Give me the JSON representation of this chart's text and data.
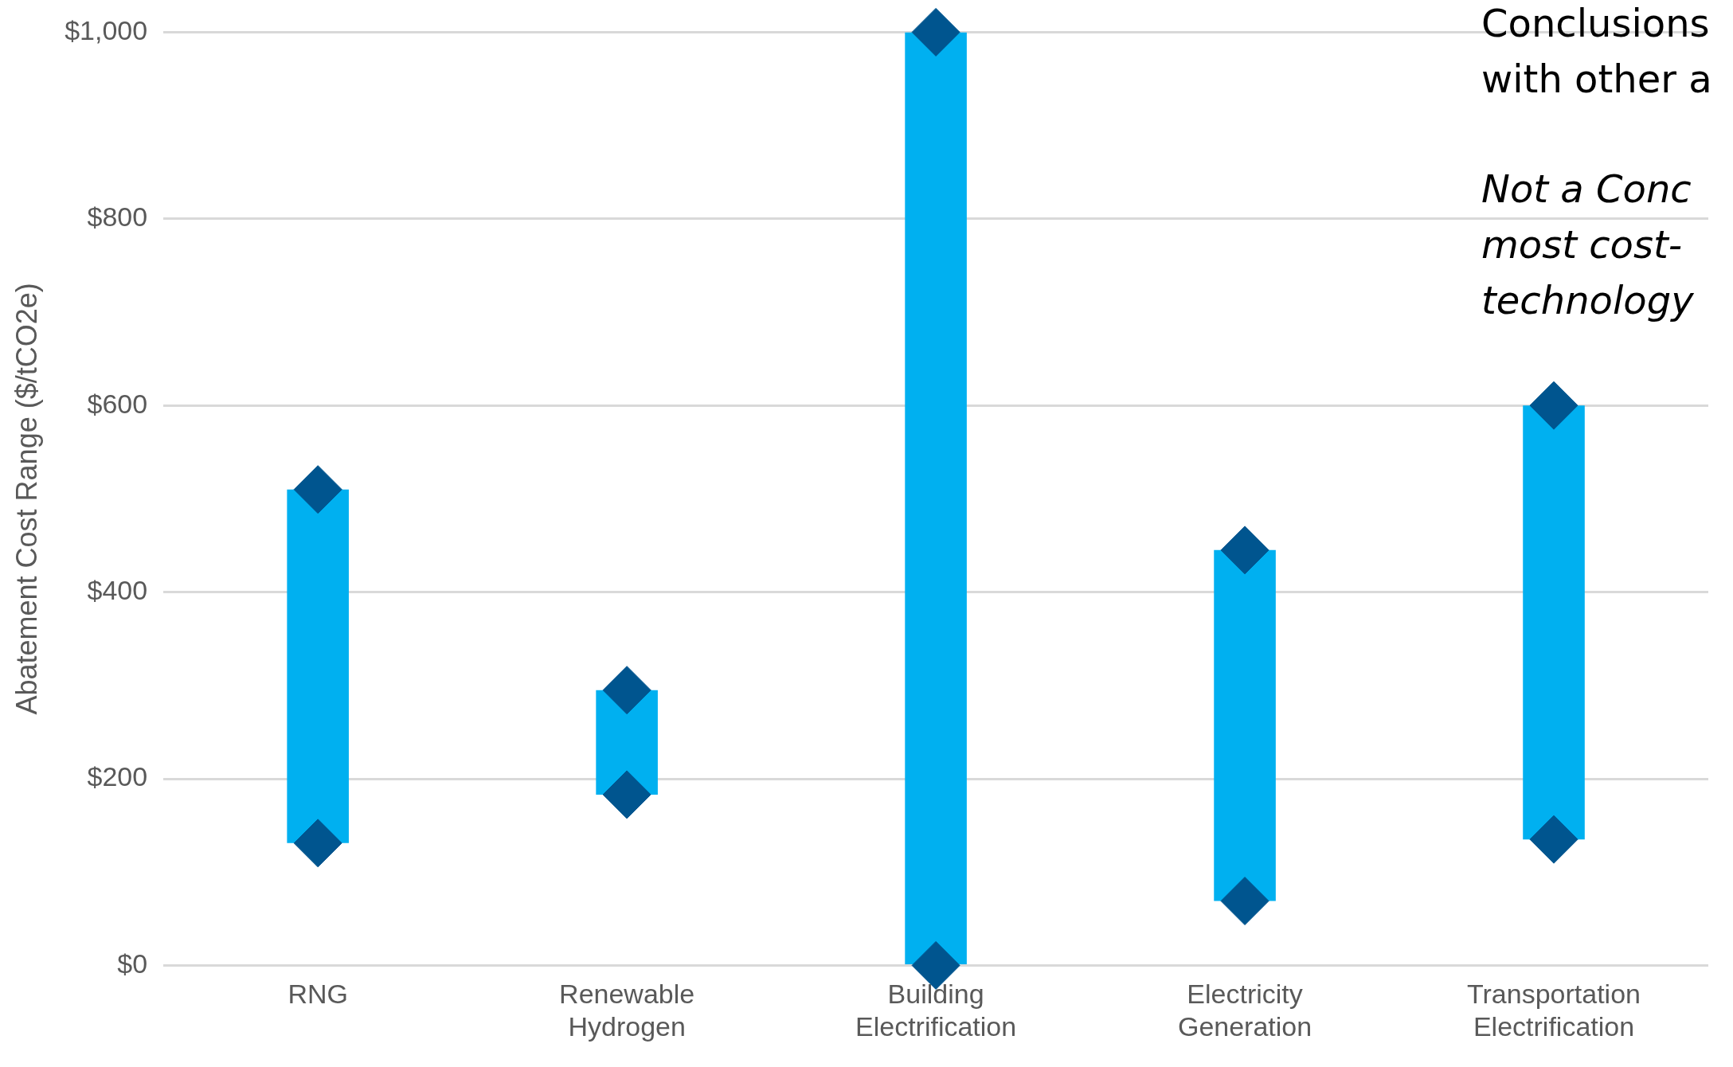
{
  "chart_data": {
    "type": "bar",
    "ylabel": "Abatement Cost Range ($/tCO2e)",
    "categories": [
      "RNG",
      "Renewable\nHydrogen",
      "Building\nElectrification",
      "Electricity\nGeneration",
      "Transportation\nElectrification"
    ],
    "series": [
      {
        "color": "#00b0f0",
        "base": [
          131,
          183,
          0,
          69,
          135
        ],
        "values": [
          379,
          112,
          1000,
          376,
          465
        ]
      },
      {
        "type": "scatter",
        "color": "#00558f",
        "marker": "diamond",
        "values": [
          131,
          183,
          0,
          69,
          135
        ]
      },
      {
        "type": "scatter",
        "color": "#00558f",
        "marker": "diamond",
        "values": [
          510,
          295,
          1000,
          445,
          600
        ]
      }
    ],
    "ylim": [
      0,
      1000
    ],
    "yticks": [
      {
        "value": 0,
        "label": "$0"
      },
      {
        "value": 200,
        "label": "$200"
      },
      {
        "value": 400,
        "label": "$400"
      },
      {
        "value": 600,
        "label": "$600"
      },
      {
        "value": 800,
        "label": "$800"
      },
      {
        "value": 1000,
        "label": "$1,000"
      }
    ],
    "grid": "y",
    "legend": false,
    "annotations": [
      "Conclusions\nwith other a",
      "Not a Conc\nmost cost-\ntechnology"
    ]
  }
}
